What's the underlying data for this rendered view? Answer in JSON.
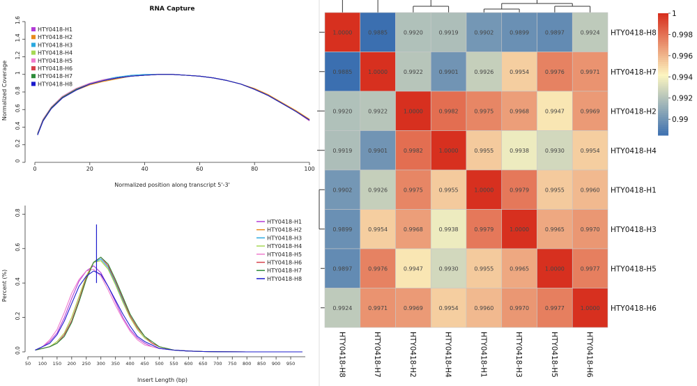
{
  "chart_data": [
    {
      "type": "line",
      "title": "RNA Capture",
      "xlabel": "Normalized position along transcript 5'-3'",
      "ylabel": "Normalized Coverage",
      "xlim": [
        0,
        100
      ],
      "ylim": [
        0,
        1.6
      ],
      "xticks": [
        "0",
        "20",
        "40",
        "60",
        "80",
        "100"
      ],
      "yticks": [
        "0",
        "0.2",
        "0.4",
        "0.6",
        "0.8",
        "1",
        "1.2",
        "1.4",
        "1.6"
      ],
      "legend_position": "top-left",
      "x": [
        1,
        3,
        6,
        10,
        15,
        20,
        25,
        30,
        35,
        40,
        45,
        50,
        55,
        60,
        65,
        70,
        75,
        80,
        85,
        90,
        95,
        100
      ],
      "series": [
        {
          "name": "HTY0418-H1",
          "color": "#b23bd6",
          "values": [
            0.32,
            0.48,
            0.62,
            0.74,
            0.83,
            0.89,
            0.93,
            0.96,
            0.98,
            0.99,
            1.0,
            1.0,
            0.99,
            0.98,
            0.96,
            0.93,
            0.89,
            0.83,
            0.76,
            0.67,
            0.58,
            0.48
          ]
        },
        {
          "name": "HTY0418-H2",
          "color": "#e88a1a",
          "values": [
            0.32,
            0.47,
            0.61,
            0.73,
            0.82,
            0.88,
            0.92,
            0.95,
            0.98,
            0.99,
            1.0,
            1.0,
            0.99,
            0.98,
            0.96,
            0.93,
            0.89,
            0.84,
            0.77,
            0.68,
            0.59,
            0.49
          ]
        },
        {
          "name": "HTY0418-H3",
          "color": "#2aa9e0",
          "values": [
            0.33,
            0.49,
            0.63,
            0.75,
            0.84,
            0.9,
            0.94,
            0.97,
            0.99,
            1.0,
            1.0,
            1.0,
            0.99,
            0.98,
            0.96,
            0.93,
            0.89,
            0.83,
            0.76,
            0.67,
            0.58,
            0.48
          ]
        },
        {
          "name": "HTY0418-H4",
          "color": "#a6d854",
          "values": [
            0.32,
            0.48,
            0.62,
            0.74,
            0.83,
            0.89,
            0.93,
            0.96,
            0.98,
            0.99,
            1.0,
            1.0,
            0.99,
            0.98,
            0.96,
            0.93,
            0.89,
            0.83,
            0.76,
            0.67,
            0.58,
            0.48
          ]
        },
        {
          "name": "HTY0418-H5",
          "color": "#f07ccd",
          "values": [
            0.33,
            0.49,
            0.63,
            0.75,
            0.84,
            0.9,
            0.94,
            0.96,
            0.98,
            0.99,
            1.0,
            1.0,
            0.99,
            0.98,
            0.96,
            0.93,
            0.89,
            0.83,
            0.76,
            0.67,
            0.58,
            0.47
          ]
        },
        {
          "name": "HTY0418-H6",
          "color": "#d6404b",
          "values": [
            0.32,
            0.48,
            0.62,
            0.74,
            0.83,
            0.89,
            0.93,
            0.96,
            0.98,
            0.99,
            1.0,
            1.0,
            0.99,
            0.98,
            0.96,
            0.93,
            0.89,
            0.83,
            0.76,
            0.67,
            0.58,
            0.48
          ]
        },
        {
          "name": "HTY0418-H7",
          "color": "#2e8b3a",
          "values": [
            0.32,
            0.48,
            0.62,
            0.74,
            0.83,
            0.89,
            0.93,
            0.96,
            0.98,
            0.99,
            1.0,
            1.0,
            0.99,
            0.98,
            0.96,
            0.93,
            0.89,
            0.83,
            0.76,
            0.67,
            0.58,
            0.48
          ]
        },
        {
          "name": "HTY0418-H8",
          "color": "#1a1acc",
          "values": [
            0.31,
            0.47,
            0.61,
            0.73,
            0.82,
            0.89,
            0.93,
            0.96,
            0.98,
            0.99,
            1.0,
            1.0,
            0.99,
            0.98,
            0.96,
            0.93,
            0.89,
            0.83,
            0.76,
            0.67,
            0.58,
            0.48
          ]
        }
      ]
    },
    {
      "type": "line",
      "title": "",
      "xlabel": "Insert Length (bp)",
      "ylabel": "Percent (%)",
      "xlim": [
        50,
        1000
      ],
      "ylim": [
        0,
        0.85
      ],
      "xticks": [
        "50",
        "100",
        "150",
        "200",
        "250",
        "300",
        "350",
        "400",
        "450",
        "500",
        "550",
        "600",
        "650",
        "700",
        "750",
        "800",
        "850",
        "900",
        "950"
      ],
      "yticks": [
        "0.0",
        "0.2",
        "0.4",
        "0.6",
        "0.8"
      ],
      "legend_position": "top-right",
      "x": [
        75,
        100,
        125,
        150,
        175,
        200,
        225,
        250,
        275,
        300,
        325,
        350,
        375,
        400,
        425,
        450,
        475,
        500,
        550,
        600,
        650,
        700,
        800,
        900,
        990
      ],
      "series": [
        {
          "name": "HTY0418-H1",
          "color": "#b23bd6",
          "values": [
            0.01,
            0.03,
            0.06,
            0.11,
            0.2,
            0.31,
            0.41,
            0.47,
            0.5,
            0.46,
            0.38,
            0.29,
            0.2,
            0.13,
            0.08,
            0.05,
            0.03,
            0.02,
            0.01,
            0.005,
            0.002,
            0.001,
            0,
            0,
            0
          ]
        },
        {
          "name": "HTY0418-H2",
          "color": "#e88a1a",
          "values": [
            0.01,
            0.02,
            0.03,
            0.06,
            0.11,
            0.2,
            0.32,
            0.44,
            0.52,
            0.53,
            0.48,
            0.39,
            0.29,
            0.2,
            0.13,
            0.08,
            0.05,
            0.03,
            0.01,
            0.005,
            0.002,
            0.001,
            0,
            0,
            0
          ]
        },
        {
          "name": "HTY0418-H3",
          "color": "#2aa9e0",
          "values": [
            0.01,
            0.02,
            0.03,
            0.05,
            0.1,
            0.18,
            0.3,
            0.43,
            0.52,
            0.54,
            0.49,
            0.4,
            0.3,
            0.21,
            0.14,
            0.09,
            0.05,
            0.03,
            0.01,
            0.005,
            0.002,
            0.001,
            0,
            0,
            0
          ]
        },
        {
          "name": "HTY0418-H4",
          "color": "#a6d854",
          "values": [
            0.01,
            0.02,
            0.03,
            0.06,
            0.11,
            0.2,
            0.32,
            0.44,
            0.52,
            0.53,
            0.48,
            0.39,
            0.29,
            0.2,
            0.13,
            0.08,
            0.05,
            0.03,
            0.01,
            0.005,
            0.002,
            0.001,
            0,
            0,
            0
          ]
        },
        {
          "name": "HTY0418-H5",
          "color": "#f07ccd",
          "values": [
            0.01,
            0.03,
            0.07,
            0.13,
            0.23,
            0.34,
            0.42,
            0.47,
            0.48,
            0.44,
            0.36,
            0.27,
            0.19,
            0.12,
            0.07,
            0.04,
            0.03,
            0.02,
            0.01,
            0.005,
            0.002,
            0.001,
            0,
            0,
            0
          ]
        },
        {
          "name": "HTY0418-H6",
          "color": "#d6404b",
          "values": [
            0.01,
            0.02,
            0.03,
            0.05,
            0.1,
            0.18,
            0.3,
            0.43,
            0.52,
            0.55,
            0.5,
            0.41,
            0.31,
            0.21,
            0.14,
            0.09,
            0.05,
            0.03,
            0.01,
            0.005,
            0.002,
            0.001,
            0,
            0,
            0
          ]
        },
        {
          "name": "HTY0418-H7",
          "color": "#2e8b3a",
          "values": [
            0.01,
            0.02,
            0.03,
            0.05,
            0.09,
            0.17,
            0.29,
            0.42,
            0.52,
            0.55,
            0.51,
            0.42,
            0.32,
            0.22,
            0.15,
            0.09,
            0.06,
            0.03,
            0.01,
            0.005,
            0.002,
            0.001,
            0,
            0,
            0
          ]
        },
        {
          "name": "HTY0418-H8",
          "color": "#1a1acc",
          "values": [
            0.01,
            0.03,
            0.05,
            0.1,
            0.18,
            0.28,
            0.38,
            0.44,
            0.47,
            0.45,
            0.38,
            0.3,
            0.22,
            0.15,
            0.09,
            0.06,
            0.04,
            0.02,
            0.01,
            0.005,
            0.002,
            0.001,
            0,
            0,
            0
          ],
          "spike": {
            "x": 285,
            "y": 0.74
          }
        }
      ]
    },
    {
      "type": "heatmap",
      "rows": [
        "HTY0418-H8",
        "HTY0418-H7",
        "HTY0418-H2",
        "HTY0418-H4",
        "HTY0418-H1",
        "HTY0418-H3",
        "HTY0418-H5",
        "HTY0418-H6"
      ],
      "columns": [
        "HTY0418-H8",
        "HTY0418-H7",
        "HTY0418-H2",
        "HTY0418-H4",
        "HTY0418-H1",
        "HTY0418-H3",
        "HTY0418-H5",
        "HTY0418-H6"
      ],
      "values": [
        [
          1.0,
          0.9885,
          0.992,
          0.9919,
          0.9902,
          0.9899,
          0.9897,
          0.9924
        ],
        [
          0.9885,
          1.0,
          0.9922,
          0.9901,
          0.9926,
          0.9954,
          0.9976,
          0.9971
        ],
        [
          0.992,
          0.9922,
          1.0,
          0.9982,
          0.9975,
          0.9968,
          0.9947,
          0.9969
        ],
        [
          0.9919,
          0.9901,
          0.9982,
          1.0,
          0.9955,
          0.9938,
          0.993,
          0.9954
        ],
        [
          0.9902,
          0.9926,
          0.9975,
          0.9955,
          1.0,
          0.9979,
          0.9955,
          0.996
        ],
        [
          0.9899,
          0.9954,
          0.9968,
          0.9938,
          0.9979,
          1.0,
          0.9965,
          0.997
        ],
        [
          0.9897,
          0.9976,
          0.9947,
          0.993,
          0.9955,
          0.9965,
          1.0,
          0.9977
        ],
        [
          0.9924,
          0.9971,
          0.9969,
          0.9954,
          0.996,
          0.997,
          0.9977,
          1.0
        ]
      ],
      "cell_labels": [
        [
          "1.0000",
          "0.9885",
          "0.9920",
          "0.9919",
          "0.9902",
          "0.9899",
          "0.9897",
          "0.9924"
        ],
        [
          "0.9885",
          "1.0000",
          "0.9922",
          "0.9901",
          "0.9926",
          "0.9954",
          "0.9976",
          "0.9971"
        ],
        [
          "0.9920",
          "0.9922",
          "1.0000",
          "0.9982",
          "0.9975",
          "0.9968",
          "0.9947",
          "0.9969"
        ],
        [
          "0.9919",
          "0.9901",
          "0.9982",
          "1.0000",
          "0.9955",
          "0.9938",
          "0.9930",
          "0.9954"
        ],
        [
          "0.9902",
          "0.9926",
          "0.9975",
          "0.9955",
          "1.0000",
          "0.9979",
          "0.9955",
          "0.9960"
        ],
        [
          "0.9899",
          "0.9954",
          "0.9968",
          "0.9938",
          "0.9979",
          "1.0000",
          "0.9965",
          "0.9970"
        ],
        [
          "0.9897",
          "0.9976",
          "0.9947",
          "0.9930",
          "0.9955",
          "0.9965",
          "1.0000",
          "0.9977"
        ],
        [
          "0.9924",
          "0.9971",
          "0.9969",
          "0.9954",
          "0.9960",
          "0.9970",
          "0.9977",
          "1.0000"
        ]
      ],
      "colorbar": {
        "range": [
          0.9885,
          1.0
        ],
        "ticks": [
          0.99,
          0.992,
          0.994,
          0.996,
          0.998,
          1.0
        ],
        "tick_labels": [
          "0.99",
          "0.992",
          "0.994",
          "0.996",
          "0.998",
          "1"
        ],
        "low_color": "#3b6fb0",
        "mid_color": "#fcf5c0",
        "high_color": "#d7301f"
      },
      "dendrogram_top": "visible",
      "dendrogram_left": "visible"
    }
  ]
}
